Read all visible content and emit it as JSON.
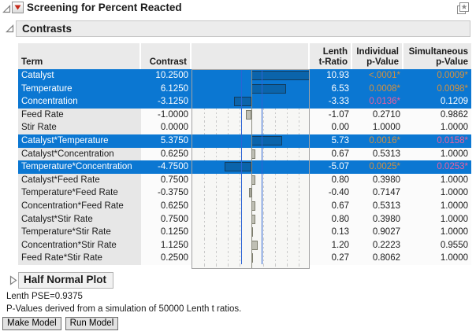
{
  "window": {
    "title": "Screening for Percent Reacted"
  },
  "sections": {
    "contrasts_title": "Contrasts",
    "half_normal_title": "Half Normal Plot"
  },
  "colors": {
    "selection_blue": "#0b77d2",
    "sig_strong_orange": "#d3913f",
    "sig_mild_magenta": "#ee5f9e",
    "bar_fill": "#bfbfb4",
    "bar_fill_selected": "#0b64ab",
    "ref_line_blue": "#2c63d4",
    "red_triangle": "#c42b1c"
  },
  "table": {
    "columns": {
      "term": "Term",
      "contrast": "Contrast",
      "t1": "Lenth",
      "t2": "t-Ratio",
      "pi1": "Individual",
      "pi2": "p-Value",
      "ps1": "Simultaneous",
      "ps2": "p-Value"
    },
    "rows": [
      {
        "term": "Catalyst",
        "contrast": "10.2500",
        "value": 10.25,
        "t": "10.93",
        "pi": "<.0001*",
        "pic": "o",
        "ps": "0.0009*",
        "psc": "o",
        "sel": true
      },
      {
        "term": "Temperature",
        "contrast": "6.1250",
        "value": 6.125,
        "t": "6.53",
        "pi": "0.0008*",
        "pic": "o",
        "ps": "0.0098*",
        "psc": "o",
        "sel": true
      },
      {
        "term": "Concentration",
        "contrast": "-3.1250",
        "value": -3.125,
        "t": "-3.33",
        "pi": "0.0136*",
        "pic": "m",
        "ps": "0.1209",
        "psc": "",
        "sel": true
      },
      {
        "term": "Feed Rate",
        "contrast": "-1.0000",
        "value": -1.0,
        "t": "-1.07",
        "pi": "0.2710",
        "pic": "",
        "ps": "0.9862",
        "psc": "",
        "sel": false
      },
      {
        "term": "Stir Rate",
        "contrast": "0.0000",
        "value": 0.0,
        "t": "0.00",
        "pi": "1.0000",
        "pic": "",
        "ps": "1.0000",
        "psc": "",
        "sel": false
      },
      {
        "term": "Catalyst*Temperature",
        "contrast": "5.3750",
        "value": 5.375,
        "t": "5.73",
        "pi": "0.0016*",
        "pic": "o",
        "ps": "0.0158*",
        "psc": "m",
        "sel": true
      },
      {
        "term": "Catalyst*Concentration",
        "contrast": "0.6250",
        "value": 0.625,
        "t": "0.67",
        "pi": "0.5313",
        "pic": "",
        "ps": "1.0000",
        "psc": "",
        "sel": false
      },
      {
        "term": "Temperature*Concentration",
        "contrast": "-4.7500",
        "value": -4.75,
        "t": "-5.07",
        "pi": "0.0025*",
        "pic": "o",
        "ps": "0.0253*",
        "psc": "m",
        "sel": true
      },
      {
        "term": "Catalyst*Feed Rate",
        "contrast": "0.7500",
        "value": 0.75,
        "t": "0.80",
        "pi": "0.3980",
        "pic": "",
        "ps": "1.0000",
        "psc": "",
        "sel": false
      },
      {
        "term": "Temperature*Feed Rate",
        "contrast": "-0.3750",
        "value": -0.375,
        "t": "-0.40",
        "pi": "0.7147",
        "pic": "",
        "ps": "1.0000",
        "psc": "",
        "sel": false
      },
      {
        "term": "Concentration*Feed Rate",
        "contrast": "0.6250",
        "value": 0.625,
        "t": "0.67",
        "pi": "0.5313",
        "pic": "",
        "ps": "1.0000",
        "psc": "",
        "sel": false
      },
      {
        "term": "Catalyst*Stir Rate",
        "contrast": "0.7500",
        "value": 0.75,
        "t": "0.80",
        "pi": "0.3980",
        "pic": "",
        "ps": "1.0000",
        "psc": "",
        "sel": false
      },
      {
        "term": "Temperature*Stir Rate",
        "contrast": "0.1250",
        "value": 0.125,
        "t": "0.13",
        "pi": "0.9027",
        "pic": "",
        "ps": "1.0000",
        "psc": "",
        "sel": false
      },
      {
        "term": "Concentration*Stir Rate",
        "contrast": "1.1250",
        "value": 1.125,
        "t": "1.20",
        "pi": "0.2223",
        "pic": "",
        "ps": "0.9550",
        "psc": "",
        "sel": false
      },
      {
        "term": "Feed Rate*Stir Rate",
        "contrast": "0.2500",
        "value": 0.25,
        "t": "0.27",
        "pi": "0.8062",
        "pic": "",
        "ps": "1.0000",
        "psc": "",
        "sel": false
      }
    ]
  },
  "footer": {
    "lenth_pse": "Lenth PSE=0.9375",
    "pvalue_note": "P-Values derived from a simulation of 50000 Lenth t ratios.",
    "make_model": "Make Model",
    "run_model": "Run Model"
  }
}
